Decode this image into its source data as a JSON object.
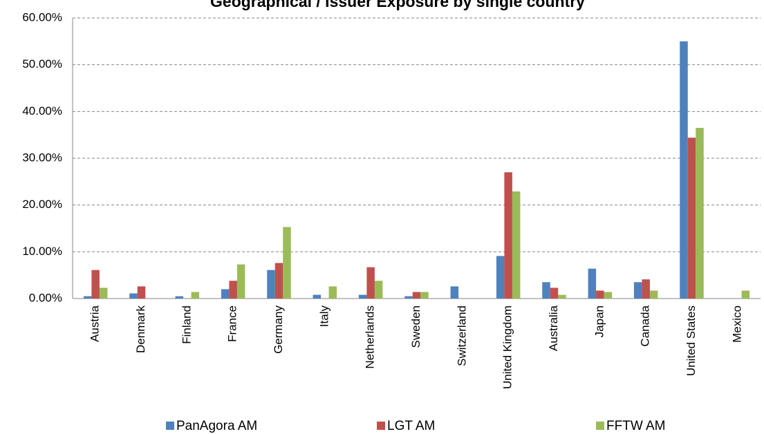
{
  "chart_data": {
    "type": "bar",
    "title": "Geographical / Issuer Exposure by single country",
    "categories": [
      "Austria",
      "Denmark",
      "Finland",
      "France",
      "Germany",
      "Italy",
      "Netherlands",
      "Sweden",
      "Switzerland",
      "United Kingdom",
      "Australia",
      "Japan",
      "Canada",
      "United States",
      "Mexico"
    ],
    "series": [
      {
        "name": "PanAgora AM",
        "color": "#4f81bd",
        "values": [
          0.5,
          1.1,
          0.5,
          2.0,
          6.1,
          0.8,
          0.8,
          0.5,
          2.6,
          9.1,
          3.5,
          6.4,
          3.5,
          55.0,
          0
        ]
      },
      {
        "name": "LGT AM",
        "color": "#c0504d",
        "values": [
          6.1,
          2.6,
          0,
          3.8,
          7.6,
          0,
          6.7,
          1.4,
          0,
          27.0,
          2.3,
          1.7,
          4.1,
          34.4,
          0
        ]
      },
      {
        "name": "FFTW AM",
        "color": "#9bbb59",
        "values": [
          2.3,
          0,
          1.4,
          7.3,
          15.3,
          2.6,
          3.8,
          1.4,
          0,
          22.9,
          0.8,
          1.4,
          1.7,
          36.5,
          1.7
        ]
      }
    ],
    "ylim": [
      0,
      60
    ],
    "yticks": [
      {
        "value": 0,
        "label": "0.00%"
      },
      {
        "value": 10,
        "label": "10.00%"
      },
      {
        "value": 20,
        "label": "20.00%"
      },
      {
        "value": 30,
        "label": "30.00%"
      },
      {
        "value": 40,
        "label": "40.00%"
      },
      {
        "value": 50,
        "label": "50.00%"
      },
      {
        "value": 60,
        "label": "60.00%"
      }
    ],
    "grid": true,
    "legend": "bottom"
  }
}
